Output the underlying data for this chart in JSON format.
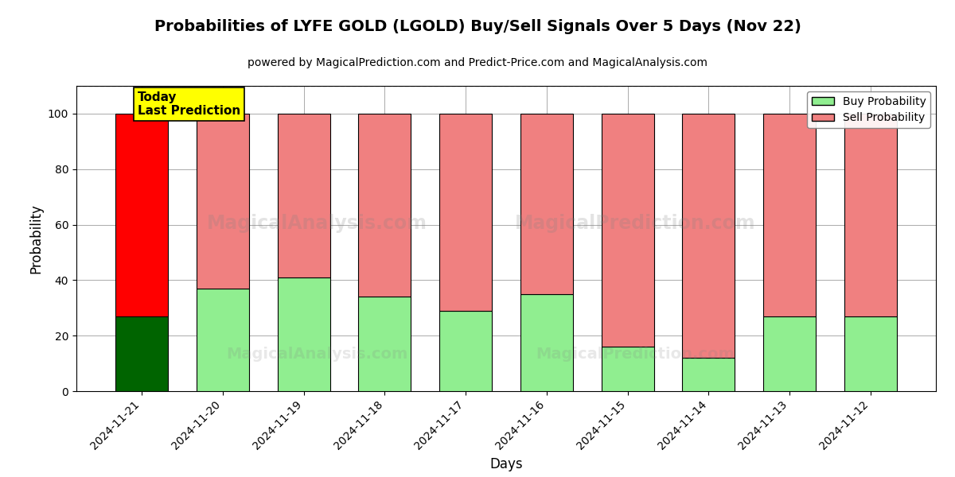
{
  "title": "Probabilities of LYFE GOLD (LGOLD) Buy/Sell Signals Over 5 Days (Nov 22)",
  "subtitle": "powered by MagicalPrediction.com and Predict-Price.com and MagicalAnalysis.com",
  "xlabel": "Days",
  "ylabel": "Probability",
  "dates": [
    "2024-11-21",
    "2024-11-20",
    "2024-11-19",
    "2024-11-18",
    "2024-11-17",
    "2024-11-16",
    "2024-11-15",
    "2024-11-14",
    "2024-11-13",
    "2024-11-12"
  ],
  "buy_probs": [
    27,
    37,
    41,
    34,
    29,
    35,
    16,
    12,
    27,
    27
  ],
  "sell_probs": [
    73,
    63,
    59,
    66,
    71,
    65,
    84,
    88,
    73,
    73
  ],
  "buy_color_today": "#006400",
  "sell_color_today": "#FF0000",
  "buy_color_rest": "#90EE90",
  "sell_color_rest": "#F08080",
  "bar_edge_color": "#000000",
  "bar_edge_width": 0.8,
  "ylim": [
    0,
    110
  ],
  "yticks": [
    0,
    20,
    40,
    60,
    80,
    100
  ],
  "dashed_line_y": 110,
  "today_label": "Today\nLast Prediction",
  "today_box_color": "#FFFF00",
  "legend_buy_label": "Buy Probability",
  "legend_sell_label": "Sell Probability",
  "grid_color": "#aaaaaa",
  "bg_color": "#ffffff",
  "figsize": [
    12,
    6
  ],
  "dpi": 100
}
